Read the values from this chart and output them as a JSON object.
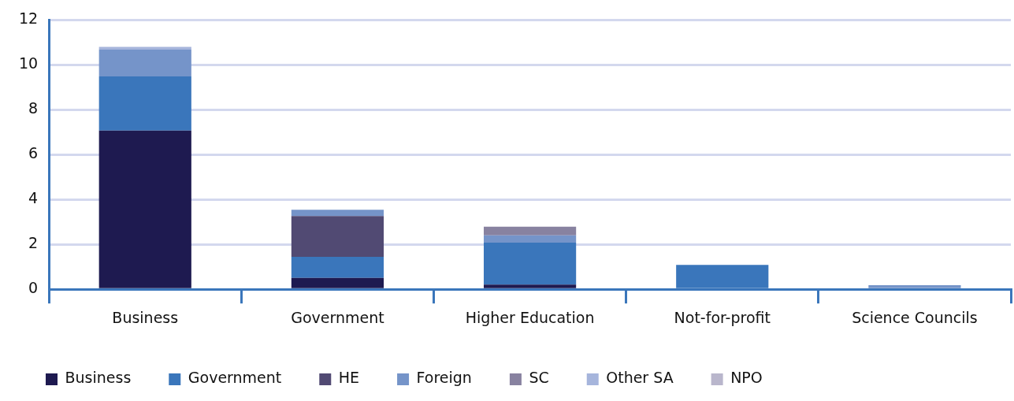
{
  "chart_data": {
    "type": "bar",
    "stacked": true,
    "categories": [
      "Business",
      "Government",
      "Higher Education",
      "Not-for-profit",
      "Science Councils"
    ],
    "series": [
      {
        "name": "Business",
        "color": "#1e1a50",
        "values": [
          7.07,
          0.51,
          0.21,
          0,
          0
        ]
      },
      {
        "name": "Government",
        "color": "#3a76bb",
        "values": [
          2.42,
          0.94,
          1.87,
          1.09,
          0
        ]
      },
      {
        "name": "HE",
        "color": "#514a73",
        "values": [
          0,
          1.81,
          0,
          0,
          0
        ]
      },
      {
        "name": "Foreign",
        "color": "#7594c9",
        "values": [
          1.19,
          0.28,
          0.32,
          0,
          0.18
        ]
      },
      {
        "name": "SC",
        "color": "#8882a0",
        "values": [
          0,
          0,
          0.39,
          0,
          0
        ]
      },
      {
        "name": "Other SA",
        "color": "#a6b5dc",
        "values": [
          0.12,
          0,
          0,
          0,
          0
        ]
      },
      {
        "name": "NPO",
        "color": "#b9b6cc",
        "values": [
          0,
          0,
          0,
          0,
          0
        ]
      }
    ],
    "ylim": [
      0,
      12
    ],
    "yticks": [
      0,
      2,
      4,
      6,
      8,
      10,
      12
    ],
    "grid": "y",
    "legend": "bottom"
  }
}
